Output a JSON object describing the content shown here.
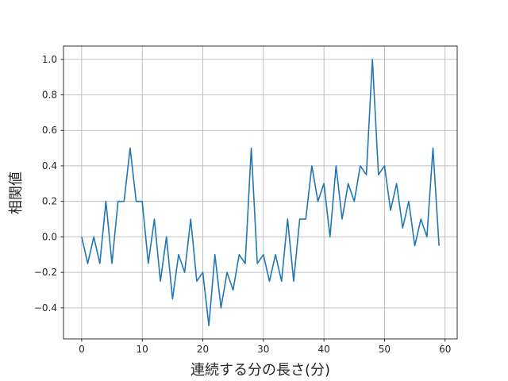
{
  "chart_data": {
    "type": "line",
    "title": "",
    "xlabel": "連続する分の長さ(分)",
    "ylabel": "相関値",
    "xlim": [
      -3,
      62
    ],
    "ylim": [
      -0.575,
      1.075
    ],
    "xticks": [
      0,
      10,
      20,
      30,
      40,
      50,
      60
    ],
    "yticks": [
      -0.4,
      -0.2,
      0.0,
      0.2,
      0.4,
      0.6,
      0.8,
      1.0
    ],
    "xtick_labels": [
      "0",
      "10",
      "20",
      "30",
      "40",
      "50",
      "60"
    ],
    "ytick_labels": [
      "−0.4",
      "−0.2",
      "0.0",
      "0.2",
      "0.4",
      "0.6",
      "0.8",
      "1.0"
    ],
    "grid": true,
    "colors": {
      "line": "#1f77b4",
      "grid": "#b0b0b0",
      "axis": "#000000"
    },
    "series": [
      {
        "x": [
          0,
          1,
          2,
          3,
          4,
          5,
          6,
          7,
          8,
          9,
          10,
          11,
          12,
          13,
          14,
          15,
          16,
          17,
          18,
          19,
          20,
          21,
          22,
          23,
          24,
          25,
          26,
          27,
          28,
          29,
          30,
          31,
          32,
          33,
          34,
          35,
          36,
          37,
          38,
          39,
          40,
          41,
          42,
          43,
          44,
          45,
          46,
          47,
          48,
          49,
          50,
          51,
          52,
          53,
          54,
          55,
          56,
          57,
          58,
          59
        ],
        "y": [
          0.0,
          -0.15,
          0.0,
          -0.15,
          0.2,
          -0.15,
          0.2,
          0.2,
          0.5,
          0.2,
          0.2,
          -0.15,
          0.1,
          -0.25,
          0.0,
          -0.35,
          -0.1,
          -0.2,
          0.1,
          -0.25,
          -0.2,
          -0.5,
          -0.1,
          -0.4,
          -0.2,
          -0.3,
          -0.1,
          -0.15,
          0.5,
          -0.15,
          -0.1,
          -0.25,
          -0.1,
          -0.25,
          0.1,
          -0.25,
          0.1,
          0.1,
          0.4,
          0.2,
          0.3,
          0.0,
          0.4,
          0.1,
          0.3,
          0.2,
          0.4,
          0.35,
          1.0,
          0.35,
          0.4,
          0.15,
          0.3,
          0.05,
          0.2,
          -0.05,
          0.1,
          0.0,
          0.5,
          -0.05
        ]
      }
    ]
  }
}
